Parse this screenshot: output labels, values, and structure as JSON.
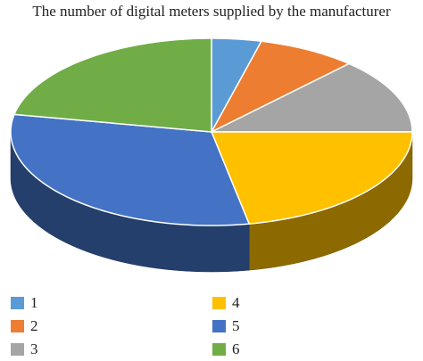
{
  "chart_data": {
    "type": "pie",
    "title": "The number of digital meters supplied by the manufacturer",
    "categories": [
      "1",
      "2",
      "3",
      "4",
      "5",
      "6"
    ],
    "values": [
      4,
      8,
      13,
      22,
      31,
      22
    ],
    "colors": [
      "#5b9bd5",
      "#ed7d31",
      "#a5a5a5",
      "#ffc000",
      "#4472c4",
      "#70ad47"
    ],
    "legend": "bottom"
  }
}
